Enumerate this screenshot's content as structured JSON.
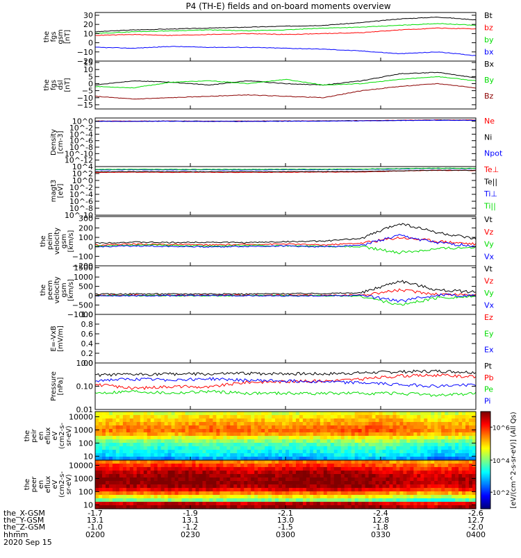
{
  "title": "P4 (TH-E) fields and on-board moments overview",
  "footer": {
    "date": "2020 Sep 15",
    "row_labels": [
      "the_X-GSM",
      "the_Y-GSM",
      "the_Z-GSM",
      "hhmm"
    ],
    "columns": [
      {
        "x": "-1.7",
        "y": "13.1",
        "z": "-1.0",
        "t": "0200"
      },
      {
        "x": "-1.9",
        "y": "13.1",
        "z": "-1.2",
        "t": "0230"
      },
      {
        "x": "-2.1",
        "y": "13.0",
        "z": "-1.5",
        "t": "0300"
      },
      {
        "x": "-2.4",
        "y": "12.8",
        "z": "-1.8",
        "t": "0330"
      },
      {
        "x": "-2.6",
        "y": "12.7",
        "z": "-2.0",
        "t": "0400"
      }
    ]
  },
  "colorbar": {
    "label": "[eV/(cm^2-s-sr-eV)] (All Qs)",
    "ticks": [
      "10^6",
      "10^4",
      "10^2"
    ]
  },
  "chart_data": [
    {
      "type": "line",
      "ylabel": [
        "the",
        "fgs",
        "gsm",
        "[nT]"
      ],
      "ylim": [
        -20,
        33
      ],
      "yticks": [
        30,
        20,
        10,
        0,
        -10,
        -20
      ],
      "ytick_labels": [
        "30",
        "20",
        "10",
        "0",
        "−10",
        "−20"
      ],
      "series": [
        {
          "name": "Bt",
          "color": "#000000",
          "values": [
            12,
            14,
            15,
            16,
            17,
            18,
            19,
            22,
            26,
            28,
            25
          ]
        },
        {
          "name": "bz",
          "color": "#ff0000",
          "values": [
            8,
            9,
            8,
            9,
            10,
            9,
            10,
            11,
            14,
            16,
            15
          ]
        },
        {
          "name": "by",
          "color": "#00dd00",
          "values": [
            10,
            12,
            13,
            14,
            13,
            14,
            16,
            17,
            19,
            21,
            19
          ]
        },
        {
          "name": "bx",
          "color": "#0000ff",
          "values": [
            -5,
            -6,
            -4,
            -5,
            -5,
            -6,
            -7,
            -9,
            -12,
            -10,
            -14
          ]
        }
      ]
    },
    {
      "type": "line",
      "ylabel": [
        "the",
        "fgs",
        "dsl",
        "[nT]"
      ],
      "ylim": [
        -18,
        16
      ],
      "yticks": [
        15,
        10,
        5,
        0,
        -5,
        -10,
        -15
      ],
      "ytick_labels": [
        "15",
        "10",
        "5",
        "0",
        "−5",
        "−10",
        "−15"
      ],
      "series": [
        {
          "name": "Bx",
          "color": "#000000",
          "values": [
            -1,
            2,
            1,
            -1,
            2,
            0,
            -1,
            2,
            7,
            8,
            4
          ]
        },
        {
          "name": "By",
          "color": "#00dd00",
          "values": [
            -2,
            -3,
            1,
            2,
            0,
            3,
            -1,
            0,
            3,
            5,
            2
          ]
        },
        {
          "name": "Bz",
          "color": "#8b0000",
          "values": [
            -9,
            -11,
            -10,
            -9,
            -8,
            -9,
            -10,
            -5,
            -2,
            0,
            -3
          ]
        }
      ]
    },
    {
      "type": "line",
      "ylabel": [
        "Density",
        "[cm-3]"
      ],
      "ylim": [
        1e-14,
        10
      ],
      "ylog": true,
      "yticks": [
        1,
        0.01,
        0.0001,
        1e-06,
        1e-08,
        1e-10,
        1e-12
      ],
      "ytick_labels": [
        "10^0",
        "10^-2",
        "10^-4",
        "10^-6",
        "10^-8",
        "10^-10",
        "10^-12"
      ],
      "series": [
        {
          "name": "Ne",
          "color": "#ff0000",
          "values": [
            1.2,
            1.1,
            1.2,
            1.0,
            1.1,
            1.2,
            1.3,
            1.5,
            2.0,
            2.5,
            2.2
          ]
        },
        {
          "name": "Ni",
          "color": "#000000",
          "values": [
            1.0,
            1.0,
            1.1,
            1.0,
            1.0,
            1.1,
            1.2,
            1.4,
            1.8,
            2.2,
            2.0
          ]
        },
        {
          "name": "Npot",
          "color": "#0000ff",
          "values": [
            0.9,
            0.9,
            1.0,
            0.9,
            0.9,
            1.0,
            1.1,
            1.3,
            1.7,
            2.0,
            1.8
          ]
        }
      ]
    },
    {
      "type": "line",
      "ylabel": [
        "magt3",
        "[eV]"
      ],
      "ylim": [
        1e-10,
        10000.0
      ],
      "ylog": true,
      "yticks": [
        10000.0,
        100,
        1,
        0.01,
        0.0001,
        1e-06,
        1e-08,
        1e-10
      ],
      "ytick_labels": [
        "10^4",
        "10^2",
        "10^0",
        "10^-2",
        "10^-4",
        "10^-6",
        "10^-8",
        "10^-10"
      ],
      "series": [
        {
          "name": "Te⊥",
          "color": "#ff0000",
          "values": [
            200,
            250,
            220,
            230,
            210,
            240,
            260,
            300,
            500,
            800,
            700
          ]
        },
        {
          "name": "Te||",
          "color": "#000000",
          "values": [
            300,
            350,
            320,
            330,
            310,
            340,
            360,
            400,
            600,
            900,
            800
          ]
        },
        {
          "name": "Ti⊥",
          "color": "#0000ff",
          "values": [
            1000,
            1200,
            1100,
            1150,
            1050,
            1200,
            1300,
            1500,
            2000,
            3000,
            2500
          ]
        },
        {
          "name": "Ti||",
          "color": "#00dd00",
          "values": [
            1500,
            1700,
            1600,
            1650,
            1550,
            1700,
            1800,
            2000,
            2600,
            3500,
            3000
          ]
        }
      ]
    },
    {
      "type": "line",
      "ylabel": [
        "the",
        "peim",
        "velocity",
        "gsm",
        "[km/s]"
      ],
      "ylim": [
        -200,
        320
      ],
      "yticks": [
        300,
        200,
        100,
        0,
        -100,
        -200
      ],
      "ytick_labels": [
        "300",
        "200",
        "100",
        "0",
        "−100",
        "−200"
      ],
      "series": [
        {
          "name": "Vt",
          "color": "#000000",
          "values": [
            40,
            50,
            45,
            50,
            45,
            55,
            60,
            90,
            250,
            150,
            80
          ]
        },
        {
          "name": "Vz",
          "color": "#ff0000",
          "values": [
            20,
            30,
            25,
            20,
            25,
            30,
            20,
            40,
            100,
            60,
            30
          ]
        },
        {
          "name": "Vy",
          "color": "#00dd00",
          "values": [
            10,
            20,
            15,
            10,
            15,
            10,
            5,
            0,
            -60,
            -20,
            0
          ]
        },
        {
          "name": "Vx",
          "color": "#0000ff",
          "values": [
            0,
            10,
            5,
            0,
            5,
            10,
            0,
            20,
            120,
            40,
            10
          ]
        }
      ]
    },
    {
      "type": "line",
      "ylabel": [
        "the",
        "peem",
        "velocity",
        "gsm",
        "[km/s]"
      ],
      "ylim": [
        -1000,
        1600
      ],
      "yticks": [
        1500,
        1000,
        500,
        0,
        -500,
        -1000
      ],
      "ytick_labels": [
        "1500",
        "1000",
        "500",
        "0",
        "−500",
        "−1000"
      ],
      "series": [
        {
          "name": "Vt",
          "color": "#000000",
          "values": [
            80,
            100,
            90,
            100,
            90,
            110,
            120,
            150,
            800,
            300,
            200
          ]
        },
        {
          "name": "Vz",
          "color": "#ff0000",
          "values": [
            20,
            30,
            20,
            30,
            20,
            30,
            20,
            40,
            300,
            80,
            50
          ]
        },
        {
          "name": "Vy",
          "color": "#00dd00",
          "values": [
            0,
            10,
            0,
            -10,
            0,
            10,
            0,
            -20,
            -500,
            -100,
            -50
          ]
        },
        {
          "name": "Vx",
          "color": "#0000ff",
          "values": [
            0,
            -10,
            0,
            10,
            0,
            -10,
            0,
            20,
            -300,
            50,
            0
          ]
        }
      ]
    },
    {
      "type": "line",
      "ylabel": [
        "E=-VxB",
        "[mV/m]"
      ],
      "ylim": [
        0,
        1
      ],
      "yticks": [
        1.0,
        0.8,
        0.6,
        0.4,
        0.2,
        0.0
      ],
      "ytick_labels": [
        "1.0",
        "0.8",
        "0.6",
        "0.4",
        "0.2",
        "0.0"
      ],
      "series": [
        {
          "name": "Ez",
          "color": "#ff0000",
          "values": []
        },
        {
          "name": "Ey",
          "color": "#00dd00",
          "values": []
        },
        {
          "name": "Ex",
          "color": "#0000ff",
          "values": []
        }
      ]
    },
    {
      "type": "line",
      "ylabel": [
        "Pressure",
        "[nPa]"
      ],
      "ylim": [
        0.01,
        1
      ],
      "ylog": true,
      "yticks": [
        1,
        0.1,
        0.01
      ],
      "ytick_labels": [
        "1.00",
        "0.10",
        "0.01"
      ],
      "series": [
        {
          "name": "Pt",
          "color": "#000000",
          "values": [
            0.3,
            0.32,
            0.34,
            0.33,
            0.36,
            0.35,
            0.34,
            0.38,
            0.42,
            0.45,
            0.4
          ]
        },
        {
          "name": "Pb",
          "color": "#ff0000",
          "values": [
            0.12,
            0.08,
            0.1,
            0.09,
            0.15,
            0.16,
            0.17,
            0.2,
            0.28,
            0.3,
            0.25
          ]
        },
        {
          "name": "Pe",
          "color": "#00dd00",
          "values": [
            0.05,
            0.06,
            0.05,
            0.06,
            0.05,
            0.05,
            0.05,
            0.05,
            0.05,
            0.04,
            0.05
          ]
        },
        {
          "name": "Pi",
          "color": "#0000ff",
          "values": [
            0.18,
            0.2,
            0.19,
            0.21,
            0.18,
            0.17,
            0.16,
            0.14,
            0.12,
            0.1,
            0.12
          ]
        }
      ]
    },
    {
      "type": "heatmap",
      "ylabel": [
        "the",
        "peir",
        "en",
        "eflux",
        "eV",
        "(cm2-s-",
        "sr-eV)"
      ],
      "ylim": [
        5,
        25000
      ],
      "ylog": true,
      "yticks": [
        10000,
        1000,
        100,
        10
      ],
      "ytick_labels": [
        "10000",
        "1000",
        "100",
        "10"
      ],
      "energy_rows_levels": [
        4.5,
        4.8,
        5.0,
        5.2,
        5.4,
        5.5,
        5.2,
        4.6,
        4.0,
        3.6,
        3.4,
        3.2,
        3.0,
        2.6
      ],
      "time_modulation": [
        0.0,
        0.1,
        0.0,
        0.2,
        0.1,
        0.0,
        0.1,
        0.3,
        0.2,
        -0.1,
        0.0
      ],
      "colorscale_range_log10": [
        1,
        7
      ]
    },
    {
      "type": "heatmap",
      "ylabel": [
        "the",
        "peer",
        "en",
        "eflux",
        "eV",
        "(cm2-s-",
        "sr-eV)"
      ],
      "ylim": [
        5,
        25000
      ],
      "ylog": true,
      "yticks": [
        10000,
        1000,
        100,
        10
      ],
      "ytick_labels": [
        "10000",
        "1000",
        "100",
        "10"
      ],
      "energy_rows_levels": [
        5.6,
        6.0,
        6.4,
        6.7,
        6.9,
        7.0,
        7.0,
        6.8,
        6.4,
        5.6,
        4.8,
        4.0,
        6.6,
        7.0
      ],
      "time_modulation": [
        0.0,
        -0.1,
        0.1,
        0.0,
        -0.2,
        0.0,
        0.1,
        0.0,
        -0.3,
        -0.5,
        -0.2
      ],
      "colorscale_range_log10": [
        1,
        7
      ]
    }
  ]
}
